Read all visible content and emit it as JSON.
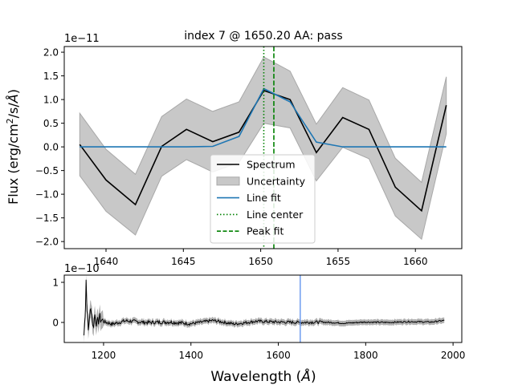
{
  "chart_data": [
    {
      "type": "line",
      "title": "index 7 @ 1650.20 AA: pass",
      "ylabel_parts": [
        "Flux (erg/cm",
        "2",
        "/s/",
        "Å",
        ")"
      ],
      "y_multiplier": "1e−11",
      "xlim": [
        1637.3,
        1663.0
      ],
      "ylim": [
        -2.15,
        2.12
      ],
      "xticks": [
        1640,
        1645,
        1650,
        1655,
        1660
      ],
      "xtick_labels": [
        "1640",
        "1645",
        "1650",
        "1655",
        "1660"
      ],
      "yticks": [
        2.0,
        1.5,
        1.0,
        0.5,
        0.0,
        -0.5,
        -1.0,
        -1.5,
        -2.0
      ],
      "ytick_labels": [
        "2.0",
        "1.5",
        "1.0",
        "0.5",
        "0.0",
        "−0.5",
        "−1.0",
        "−1.5",
        "−2.0"
      ],
      "grid": false,
      "legend_position": "lower-center",
      "legend": [
        "Spectrum",
        "Uncertainty",
        "Line fit",
        "Line center",
        "Peak fit"
      ],
      "x": [
        1638.3,
        1640.0,
        1641.9,
        1643.6,
        1645.2,
        1646.9,
        1648.6,
        1650.2,
        1651.9,
        1653.6,
        1655.3,
        1657.0,
        1658.7,
        1660.4,
        1662.0
      ],
      "spectrum": [
        0.05,
        -0.7,
        -1.22,
        0.01,
        0.37,
        0.11,
        0.31,
        1.19,
        1.0,
        -0.12,
        0.62,
        0.37,
        -0.85,
        -1.35,
        0.88
      ],
      "uncertainty_upper": [
        0.71,
        -0.05,
        -0.58,
        0.64,
        1.01,
        0.75,
        0.95,
        1.9,
        1.6,
        0.48,
        1.25,
        0.99,
        -0.24,
        -0.75,
        1.48
      ],
      "uncertainty_lower": [
        -0.61,
        -1.36,
        -1.86,
        -0.62,
        -0.27,
        -0.53,
        -0.33,
        0.5,
        0.4,
        -0.72,
        -0.01,
        -0.25,
        -1.46,
        -1.95,
        0.28
      ],
      "line_fit": [
        0.0,
        0.0,
        0.0,
        0.0,
        0.0,
        0.01,
        0.22,
        1.23,
        0.95,
        0.1,
        0.0,
        0.0,
        0.0,
        0.0,
        0.0
      ],
      "line_center": 1650.2,
      "peak_fit": 1650.85,
      "colors": {
        "spectrum": "#000000",
        "uncertainty": "#c8c8c8",
        "line_fit": "#1f77b4",
        "line_center": "#008000",
        "peak_fit": "#008000"
      }
    },
    {
      "type": "line",
      "xlabel_parts": [
        "Wavelength (",
        "Å",
        ")"
      ],
      "y_multiplier": "1e−10",
      "xlim": [
        1110,
        2020
      ],
      "ylim": [
        -0.5,
        1.18
      ],
      "xticks": [
        1200,
        1400,
        1600,
        1800,
        2000
      ],
      "xtick_labels": [
        "1200",
        "1400",
        "1600",
        "1800",
        "2000"
      ],
      "yticks": [
        1,
        0
      ],
      "ytick_labels": [
        "1",
        "0"
      ],
      "grid": false,
      "marker_line": 1650.2,
      "series": [
        {
          "x": [
            1155,
            1158,
            1160,
            1162,
            1165,
            1168,
            1172,
            1176,
            1180,
            1185,
            1190,
            1200,
            1220,
            1250,
            1300,
            1350,
            1400,
            1450,
            1500,
            1550,
            1600,
            1650,
            1700,
            1750,
            1800,
            1850,
            1900,
            1950,
            1980
          ],
          "y": [
            -0.32,
            0.25,
            1.08,
            0.4,
            -0.22,
            0.18,
            0.35,
            -0.14,
            0.2,
            -0.06,
            0.12,
            0.02,
            -0.04,
            0.04,
            0.0,
            0.01,
            -0.03,
            0.05,
            -0.04,
            0.03,
            0.01,
            0.0,
            0.01,
            -0.02,
            0.01,
            0.0,
            0.02,
            0.01,
            0.05
          ]
        }
      ],
      "colors": {
        "spectrum": "#000000",
        "uncertainty": "#b0b0b0",
        "marker_line": "#6495ed"
      }
    }
  ]
}
